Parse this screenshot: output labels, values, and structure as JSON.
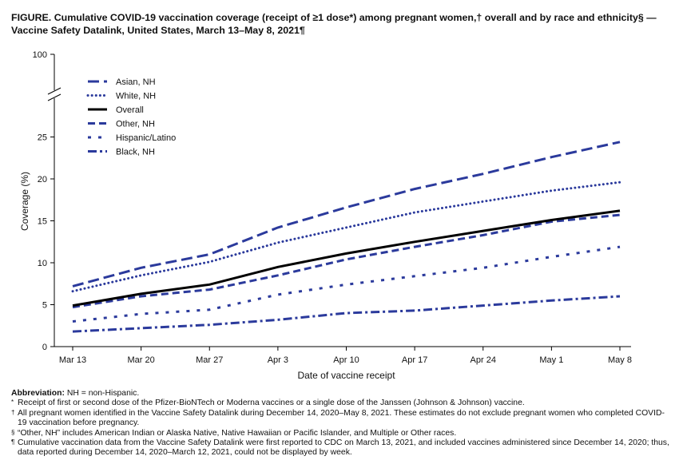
{
  "figure": {
    "title_line1": "FIGURE. Cumulative COVID-19 vaccination coverage (receipt of ≥1 dose*) among pregnant women,† overall and by race and ethnicity§ —",
    "title_line2": "Vaccine Safety Datalink, United States, March 13–May 8, 2021¶"
  },
  "chart_data": {
    "type": "line",
    "xlabel": "Date of vaccine receipt",
    "ylabel": "Coverage (%)",
    "categories": [
      "Mar 13",
      "Mar 20",
      "Mar 27",
      "Apr 3",
      "Apr 10",
      "Apr 17",
      "Apr 24",
      "May 1",
      "May 8"
    ],
    "yticks": [
      0,
      5,
      10,
      15,
      20,
      25
    ],
    "ytick_break_label": "100",
    "ylim": [
      0,
      100
    ],
    "y_axis_break": [
      28,
      98
    ],
    "grid": false,
    "legend_position": "top-left",
    "series": [
      {
        "name": "Asian, NH",
        "style": "long-dash",
        "color": "#2b3a9c",
        "values": [
          7.2,
          9.4,
          11.0,
          14.2,
          16.6,
          18.8,
          20.6,
          22.6,
          24.4
        ]
      },
      {
        "name": "White, NH",
        "style": "dot",
        "color": "#2b3a9c",
        "values": [
          6.6,
          8.5,
          10.1,
          12.4,
          14.2,
          16.0,
          17.3,
          18.6,
          19.6
        ]
      },
      {
        "name": "Overall",
        "style": "solid",
        "color": "#000000",
        "values": [
          4.9,
          6.3,
          7.4,
          9.5,
          11.1,
          12.5,
          13.8,
          15.1,
          16.2
        ]
      },
      {
        "name": "Other, NH",
        "style": "dash",
        "color": "#2b3a9c",
        "values": [
          4.7,
          6.0,
          6.8,
          8.5,
          10.4,
          11.9,
          13.3,
          14.9,
          15.7
        ]
      },
      {
        "name": "Hispanic/Latino",
        "style": "spaced-dot",
        "color": "#2b3a9c",
        "values": [
          3.0,
          3.9,
          4.4,
          6.2,
          7.4,
          8.4,
          9.4,
          10.7,
          11.9
        ]
      },
      {
        "name": "Black, NH",
        "style": "dash-dot",
        "color": "#2b3a9c",
        "values": [
          1.8,
          2.2,
          2.6,
          3.2,
          4.0,
          4.3,
          4.9,
          5.5,
          6.0
        ]
      }
    ]
  },
  "notes": {
    "abbreviation_label": "Abbreviation:",
    "abbreviation_text": "NH = non-Hispanic.",
    "note1_symbol": "*",
    "note1": "Receipt of first or second dose of the Pfizer-BioNTech or Moderna vaccines or a single dose of the Janssen (Johnson & Johnson) vaccine.",
    "note2_symbol": "†",
    "note2": "All pregnant women identified in the Vaccine Safety Datalink during December 14, 2020–May 8, 2021. These estimates do not exclude pregnant women who completed COVID-19 vaccination before pregnancy.",
    "note3_symbol": "§",
    "note3": "“Other, NH” includes American Indian or Alaska Native, Native Hawaiian or Pacific Islander, and Multiple or Other races.",
    "note4_symbol": "¶",
    "note4": "Cumulative vaccination data from the Vaccine Safety Datalink were first reported to CDC on March 13, 2021, and included vaccines administered since December 14, 2020; thus, data reported during December 14, 2020–March 12, 2021, could not be displayed by week."
  }
}
